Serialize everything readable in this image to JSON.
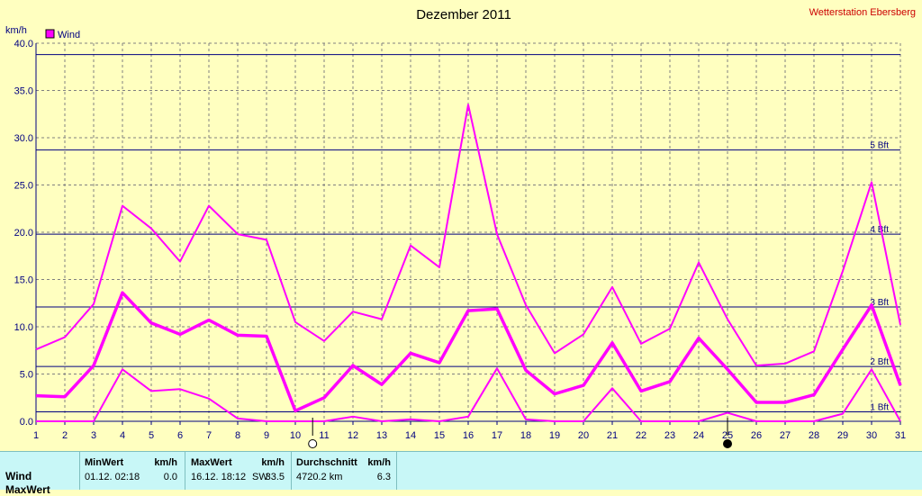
{
  "chart_data": {
    "type": "line",
    "title": "Dezember 2011",
    "source_label": "Wetterstation Ebersberg",
    "ylabel": "km/h",
    "ylim": [
      0,
      40
    ],
    "yticks": [
      "0.0",
      "5.0",
      "10.0",
      "15.0",
      "20.0",
      "25.0",
      "30.0",
      "35.0",
      "40.0"
    ],
    "categories": [
      "1",
      "2",
      "3",
      "4",
      "5",
      "6",
      "7",
      "8",
      "9",
      "10",
      "11",
      "12",
      "13",
      "14",
      "15",
      "16",
      "17",
      "18",
      "19",
      "20",
      "21",
      "22",
      "23",
      "24",
      "25",
      "26",
      "27",
      "28",
      "29",
      "30",
      "31"
    ],
    "legend": [
      {
        "name": "Wind",
        "color": "#ff00ff"
      }
    ],
    "series": [
      {
        "name": "Max",
        "values": [
          7.6,
          8.9,
          12.4,
          22.8,
          20.4,
          16.9,
          22.8,
          19.8,
          19.2,
          10.5,
          8.5,
          11.6,
          10.8,
          18.6,
          16.3,
          33.5,
          19.8,
          12.3,
          7.2,
          9.2,
          14.2,
          8.2,
          9.8,
          16.8,
          10.8,
          5.9,
          6.1,
          7.4,
          15.9,
          25.3,
          10.2
        ]
      },
      {
        "name": "Mittel",
        "values": [
          2.7,
          2.6,
          5.9,
          13.6,
          10.4,
          9.2,
          10.7,
          9.1,
          9.0,
          1.1,
          2.5,
          5.9,
          3.9,
          7.2,
          6.2,
          11.7,
          11.9,
          5.4,
          2.9,
          3.8,
          8.3,
          3.2,
          4.2,
          8.8,
          5.5,
          2.0,
          2.0,
          2.8,
          7.6,
          12.3,
          3.8
        ]
      },
      {
        "name": "Min",
        "values": [
          0.0,
          0.0,
          0.0,
          5.5,
          3.2,
          3.4,
          2.4,
          0.3,
          0.0,
          0.0,
          0.0,
          0.5,
          0.0,
          0.2,
          0.0,
          0.5,
          5.6,
          0.2,
          0.0,
          0.0,
          3.5,
          0.0,
          0.0,
          0.0,
          0.9,
          0.0,
          0.0,
          0.0,
          0.8,
          5.5,
          0.0
        ]
      }
    ],
    "reference_lines": [
      {
        "label": "1 Bft",
        "value": 1.0
      },
      {
        "label": "2 Bft",
        "value": 5.8
      },
      {
        "label": "3 Bft",
        "value": 12.1
      },
      {
        "label": "4 Bft",
        "value": 19.8
      },
      {
        "label": "5 Bft",
        "value": 28.7
      },
      {
        "label": "",
        "value": 38.8
      }
    ],
    "moon_phases": [
      {
        "day": 10.6,
        "phase": "full"
      },
      {
        "day": 25,
        "phase": "new"
      }
    ],
    "grid": true
  },
  "footer": {
    "row_label": "Wind",
    "row_label_2": "MaxWert",
    "min": {
      "header": "MinWert",
      "unit": "km/h",
      "datetime": "01.12.  02:18",
      "value": "0.0"
    },
    "max": {
      "header": "MaxWert",
      "unit": "km/h",
      "datetime": "16.12.  18:12",
      "dir": "SW",
      "value": "33.5"
    },
    "avg": {
      "header": "Durchschnitt",
      "unit": "km/h",
      "distance": "4720.2 km",
      "value": "6.3"
    }
  }
}
